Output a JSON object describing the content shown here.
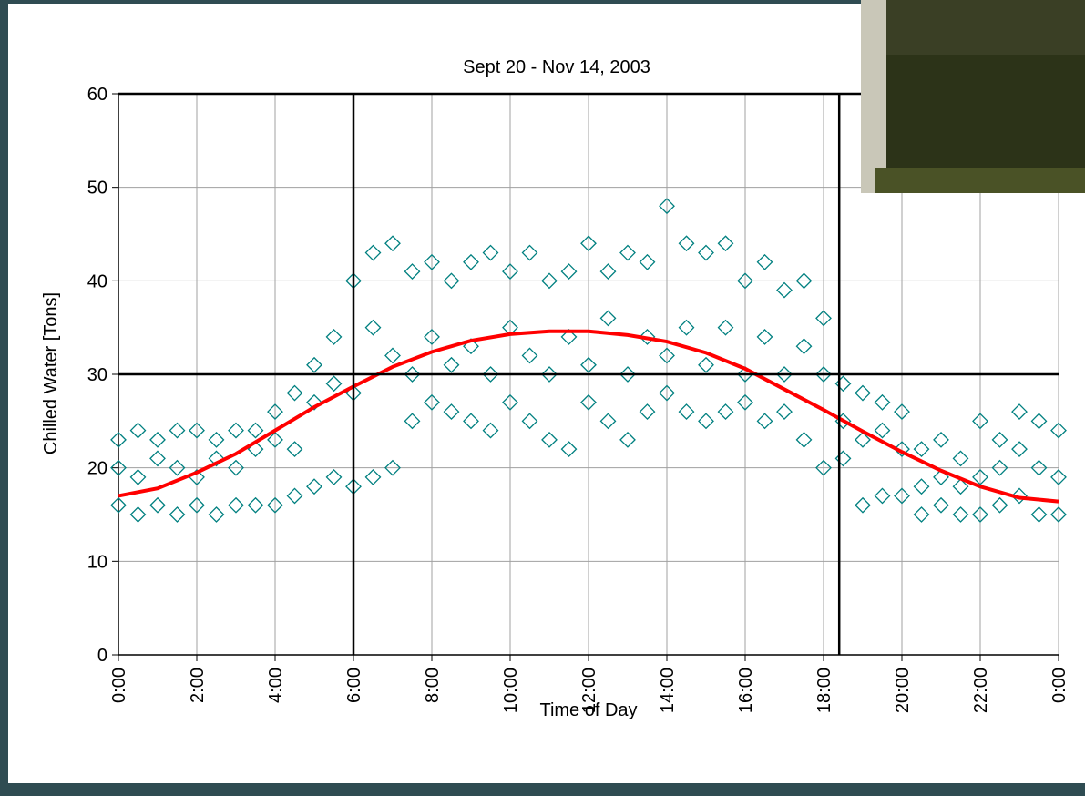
{
  "chart_data": {
    "type": "scatter",
    "title": "Sept 20 - Nov 14, 2003",
    "x_label": "Time of Day",
    "y_label": "Chilled Water [Tons]",
    "xlim": [
      0,
      24
    ],
    "ylim": [
      0,
      60
    ],
    "xticks": [
      {
        "value": 0,
        "label": "0:00"
      },
      {
        "value": 2,
        "label": "2:00"
      },
      {
        "value": 4,
        "label": "4:00"
      },
      {
        "value": 6,
        "label": "6:00"
      },
      {
        "value": 8,
        "label": "8:00"
      },
      {
        "value": 10,
        "label": "10:00"
      },
      {
        "value": 12,
        "label": "12:00"
      },
      {
        "value": 14,
        "label": "14:00"
      },
      {
        "value": 16,
        "label": "16:00"
      },
      {
        "value": 18,
        "label": "18:00"
      },
      {
        "value": 20,
        "label": "20:00"
      },
      {
        "value": 22,
        "label": "22:00"
      },
      {
        "value": 24,
        "label": "0:00"
      }
    ],
    "yticks": [
      0,
      10,
      20,
      30,
      40,
      50,
      60
    ],
    "grid": true,
    "reference_lines": {
      "x": [
        6,
        18.4
      ],
      "y": [
        30,
        60
      ],
      "color": "#000000"
    },
    "series": [
      {
        "type": "scatter",
        "marker": "diamond",
        "color": "#008080",
        "x": [
          0,
          0,
          0,
          0.5,
          0.5,
          0.5,
          1,
          1,
          1,
          1.5,
          1.5,
          1.5,
          2,
          2,
          2,
          2.5,
          2.5,
          2.5,
          3,
          3,
          3,
          3.5,
          3.5,
          3.5,
          4,
          4,
          4,
          4.5,
          4.5,
          4.5,
          5,
          5,
          5,
          5.5,
          5.5,
          5.5,
          6,
          6,
          6,
          6.5,
          6.5,
          6.5,
          7,
          7,
          7,
          7.5,
          7.5,
          7.5,
          8,
          8,
          8,
          8.5,
          8.5,
          8.5,
          9,
          9,
          9,
          9.5,
          9.5,
          9.5,
          10,
          10,
          10,
          10.5,
          10.5,
          10.5,
          11,
          11,
          11,
          11.5,
          11.5,
          11.5,
          12,
          12,
          12,
          12.5,
          12.5,
          12.5,
          13,
          13,
          13,
          13.5,
          13.5,
          13.5,
          14,
          14,
          14,
          14.5,
          14.5,
          14.5,
          15,
          15,
          15,
          15.5,
          15.5,
          15.5,
          16,
          16,
          16,
          16.5,
          16.5,
          16.5,
          17,
          17,
          17,
          17.5,
          17.5,
          17.5,
          18,
          18,
          18,
          18.5,
          18.5,
          18.5,
          19,
          19,
          19,
          19.5,
          19.5,
          19.5,
          20,
          20,
          20,
          20.5,
          20.5,
          20.5,
          21,
          21,
          21,
          21.5,
          21.5,
          21.5,
          22,
          22,
          22,
          22.5,
          22.5,
          22.5,
          23,
          23,
          23,
          23.5,
          23.5,
          23.5,
          24,
          24,
          24
        ],
        "values": [
          16,
          20,
          23,
          15,
          19,
          24,
          16,
          21,
          23,
          15,
          20,
          24,
          16,
          19,
          24,
          15,
          21,
          23,
          16,
          20,
          24,
          16,
          22,
          24,
          16,
          23,
          26,
          17,
          22,
          28,
          18,
          27,
          31,
          19,
          29,
          34,
          18,
          28,
          40,
          19,
          35,
          43,
          20,
          32,
          44,
          25,
          30,
          41,
          27,
          34,
          42,
          26,
          31,
          40,
          25,
          33,
          42,
          24,
          30,
          43,
          27,
          35,
          41,
          25,
          32,
          43,
          23,
          30,
          40,
          22,
          34,
          41,
          27,
          31,
          44,
          25,
          36,
          41,
          23,
          30,
          43,
          26,
          34,
          42,
          28,
          32,
          48,
          26,
          35,
          44,
          25,
          31,
          43,
          26,
          35,
          44,
          27,
          30,
          40,
          25,
          34,
          42,
          26,
          30,
          39,
          23,
          33,
          40,
          20,
          30,
          36,
          21,
          25,
          29,
          16,
          23,
          28,
          17,
          24,
          27,
          17,
          22,
          26,
          15,
          18,
          22,
          16,
          19,
          23,
          15,
          18,
          21,
          15,
          19,
          25,
          16,
          20,
          23,
          17,
          22,
          26,
          15,
          20,
          25,
          15,
          19,
          24
        ]
      },
      {
        "type": "line",
        "color": "#ff0000",
        "x": [
          0,
          1,
          2,
          3,
          4,
          5,
          6,
          7,
          8,
          9,
          10,
          11,
          12,
          13,
          14,
          15,
          16,
          17,
          18,
          19,
          20,
          21,
          22,
          23,
          24
        ],
        "values": [
          17,
          17.8,
          19.5,
          21.5,
          24,
          26.5,
          28.7,
          30.8,
          32.4,
          33.6,
          34.3,
          34.6,
          34.6,
          34.2,
          33.5,
          32.3,
          30.6,
          28.4,
          26.2,
          23.9,
          21.7,
          19.7,
          18,
          16.8,
          16.4
        ]
      }
    ]
  }
}
